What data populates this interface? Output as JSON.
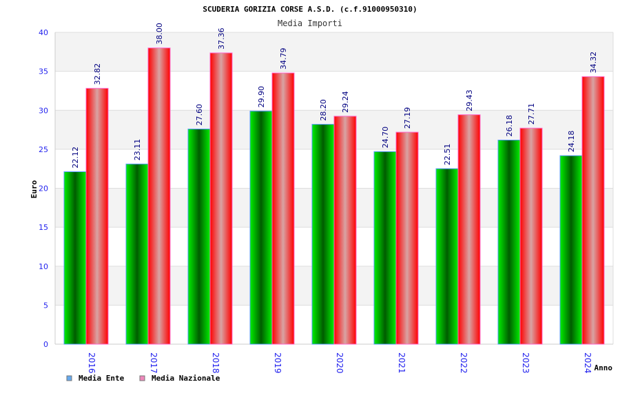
{
  "chart_data": {
    "type": "bar",
    "title": "SCUDERIA GORIZIA CORSE A.S.D. (c.f.91000950310)",
    "subtitle": "Media Importi",
    "xlabel": "Anno",
    "ylabel": "Euro",
    "ylim": [
      0,
      40
    ],
    "yticks": [
      0,
      5,
      10,
      15,
      20,
      25,
      30,
      35,
      40
    ],
    "grid": true,
    "legend_position": "bottom-left",
    "categories": [
      "2016",
      "2017",
      "2018",
      "2019",
      "2020",
      "2021",
      "2022",
      "2023",
      "2024"
    ],
    "series": [
      {
        "name": "Media Ente",
        "legend_color": "#66aaee",
        "values": [
          22.12,
          23.11,
          27.6,
          29.9,
          28.2,
          24.7,
          22.51,
          26.18,
          24.18
        ],
        "labels": [
          "22.12",
          "23.11",
          "27.60",
          "29.90",
          "28.20",
          "24.70",
          "22.51",
          "26.18",
          "24.18"
        ]
      },
      {
        "name": "Media Nazionale",
        "legend_color": "#ee88bb",
        "values": [
          32.82,
          38.0,
          37.36,
          34.79,
          29.24,
          27.19,
          29.43,
          27.71,
          34.32
        ],
        "labels": [
          "32.82",
          "38.00",
          "37.36",
          "34.79",
          "29.24",
          "27.19",
          "29.43",
          "27.71",
          "34.32"
        ]
      }
    ]
  }
}
